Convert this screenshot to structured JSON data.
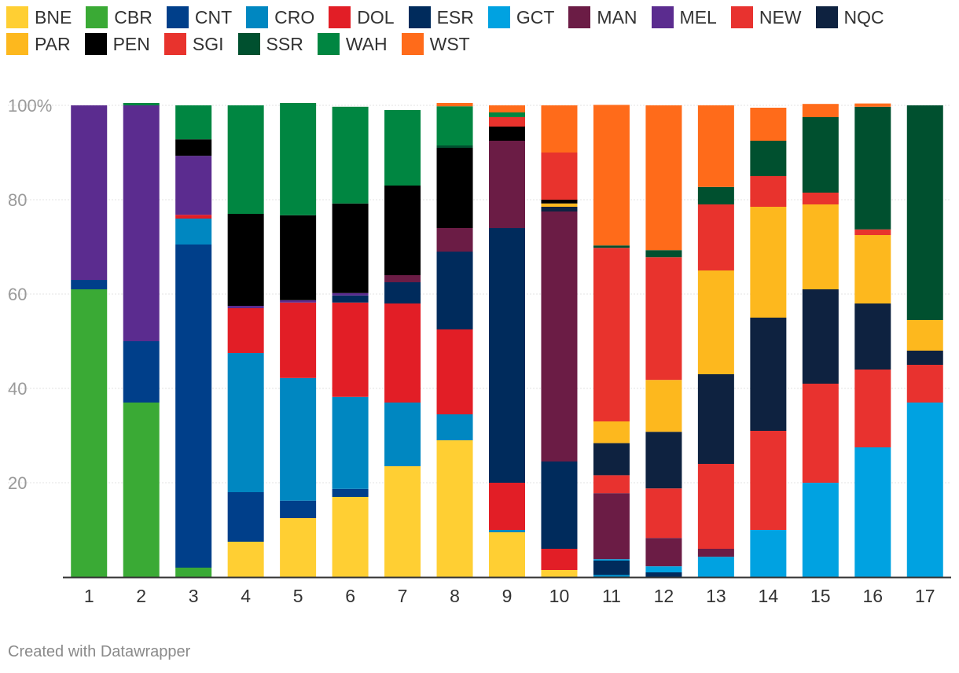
{
  "chart_data": {
    "type": "bar",
    "stacked": true,
    "title": "",
    "xlabel": "",
    "ylabel": "",
    "ylim": [
      0,
      100
    ],
    "y_ticks": [
      {
        "value": 20,
        "label": "20"
      },
      {
        "value": 40,
        "label": "40"
      },
      {
        "value": 60,
        "label": "60"
      },
      {
        "value": 80,
        "label": "80"
      },
      {
        "value": 100,
        "label": "100%"
      }
    ],
    "categories": [
      "1",
      "2",
      "3",
      "4",
      "5",
      "6",
      "7",
      "8",
      "9",
      "10",
      "11",
      "12",
      "13",
      "14",
      "15",
      "16",
      "17"
    ],
    "series": [
      {
        "name": "BNE",
        "color": "#ffcf33",
        "values": [
          0,
          0,
          0,
          7.5,
          12.5,
          17,
          23.5,
          29,
          9.5,
          1.5,
          0,
          0,
          0,
          0,
          0,
          0,
          0
        ]
      },
      {
        "name": "CBR",
        "color": "#3aaa35",
        "values": [
          61,
          37,
          2,
          0,
          0,
          0,
          0,
          0,
          0,
          0,
          0,
          0,
          0,
          0,
          0,
          0,
          0
        ]
      },
      {
        "name": "CNT",
        "color": "#003f8a",
        "values": [
          2,
          13,
          68.5,
          10.5,
          3.7,
          1.7,
          0,
          0,
          0,
          0,
          0,
          0,
          0,
          0,
          0,
          0,
          0
        ]
      },
      {
        "name": "CRO",
        "color": "#0087c1",
        "values": [
          0,
          0,
          5.5,
          29.5,
          26,
          19.5,
          13.5,
          5.5,
          0.5,
          0,
          0.5,
          0,
          0,
          0,
          0,
          0,
          0
        ]
      },
      {
        "name": "DOL",
        "color": "#e21e26",
        "values": [
          0,
          0,
          0.8,
          9.5,
          16,
          20,
          21,
          18,
          10,
          4.5,
          0,
          0,
          0,
          0,
          0,
          0,
          0
        ]
      },
      {
        "name": "ESR",
        "color": "#002b5c",
        "values": [
          0,
          0,
          0,
          0,
          0,
          1.5,
          4.5,
          16.5,
          54,
          18.5,
          3,
          1,
          0,
          0,
          0,
          0,
          0
        ]
      },
      {
        "name": "GCT",
        "color": "#00a2e1",
        "values": [
          0,
          0,
          0,
          0,
          0,
          0,
          0,
          0,
          0,
          0,
          0.3,
          1.3,
          4.3,
          10,
          20,
          27.5,
          37
        ]
      },
      {
        "name": "MAN",
        "color": "#6b1c45",
        "values": [
          0,
          0,
          0,
          0,
          0,
          0,
          1.5,
          5,
          18.5,
          53,
          14,
          6,
          1.7,
          0,
          0,
          0,
          0
        ]
      },
      {
        "name": "MEL",
        "color": "#5b2c8f",
        "values": [
          37,
          50,
          12.5,
          0.5,
          0.5,
          0.5,
          0,
          0,
          0,
          0,
          0,
          0,
          0,
          0,
          0,
          0,
          0
        ]
      },
      {
        "name": "NEW",
        "color": "#e8322f",
        "values": [
          0,
          0,
          0,
          0,
          0,
          0,
          0,
          0,
          0,
          0,
          3.8,
          10.5,
          18,
          21,
          21,
          16.5,
          8
        ]
      },
      {
        "name": "NQC",
        "color": "#0e2240",
        "values": [
          0,
          0,
          0,
          0,
          0,
          0,
          0,
          0,
          0,
          1,
          6.8,
          12,
          19,
          24,
          20,
          14,
          3
        ]
      },
      {
        "name": "PAR",
        "color": "#fdb81e",
        "values": [
          0,
          0,
          0,
          0,
          0,
          0,
          0,
          0,
          0,
          0.7,
          4.6,
          11,
          22,
          23.5,
          18,
          14.5,
          6.5
        ]
      },
      {
        "name": "PEN",
        "color": "#000000",
        "values": [
          0,
          0,
          3.5,
          19.5,
          18,
          19,
          19,
          17,
          3,
          0.8,
          0,
          0,
          0,
          0,
          0,
          0,
          0
        ]
      },
      {
        "name": "SGI",
        "color": "#e8332d",
        "values": [
          0,
          0,
          0,
          0,
          0,
          0,
          0,
          0,
          2,
          10,
          36.8,
          26,
          14,
          6.5,
          2.5,
          1.2,
          0
        ]
      },
      {
        "name": "SSR",
        "color": "#00502f",
        "values": [
          0,
          0,
          0,
          0,
          0,
          0,
          0,
          0.5,
          0,
          0,
          0.5,
          1.5,
          3.7,
          7.5,
          16,
          26,
          45.5
        ]
      },
      {
        "name": "WAH",
        "color": "#008641",
        "values": [
          0,
          0.5,
          7.2,
          23,
          23.8,
          20.5,
          16,
          8.3,
          1,
          0,
          0,
          0,
          0,
          0,
          0,
          0,
          0
        ]
      },
      {
        "name": "WST",
        "color": "#ff6b1a",
        "values": [
          0,
          0,
          0,
          0,
          0,
          0,
          0,
          0.7,
          1.5,
          10,
          29.8,
          30.7,
          17.3,
          7,
          2.8,
          0.7,
          0
        ]
      }
    ]
  },
  "footer": {
    "credit": "Created with Datawrapper"
  }
}
